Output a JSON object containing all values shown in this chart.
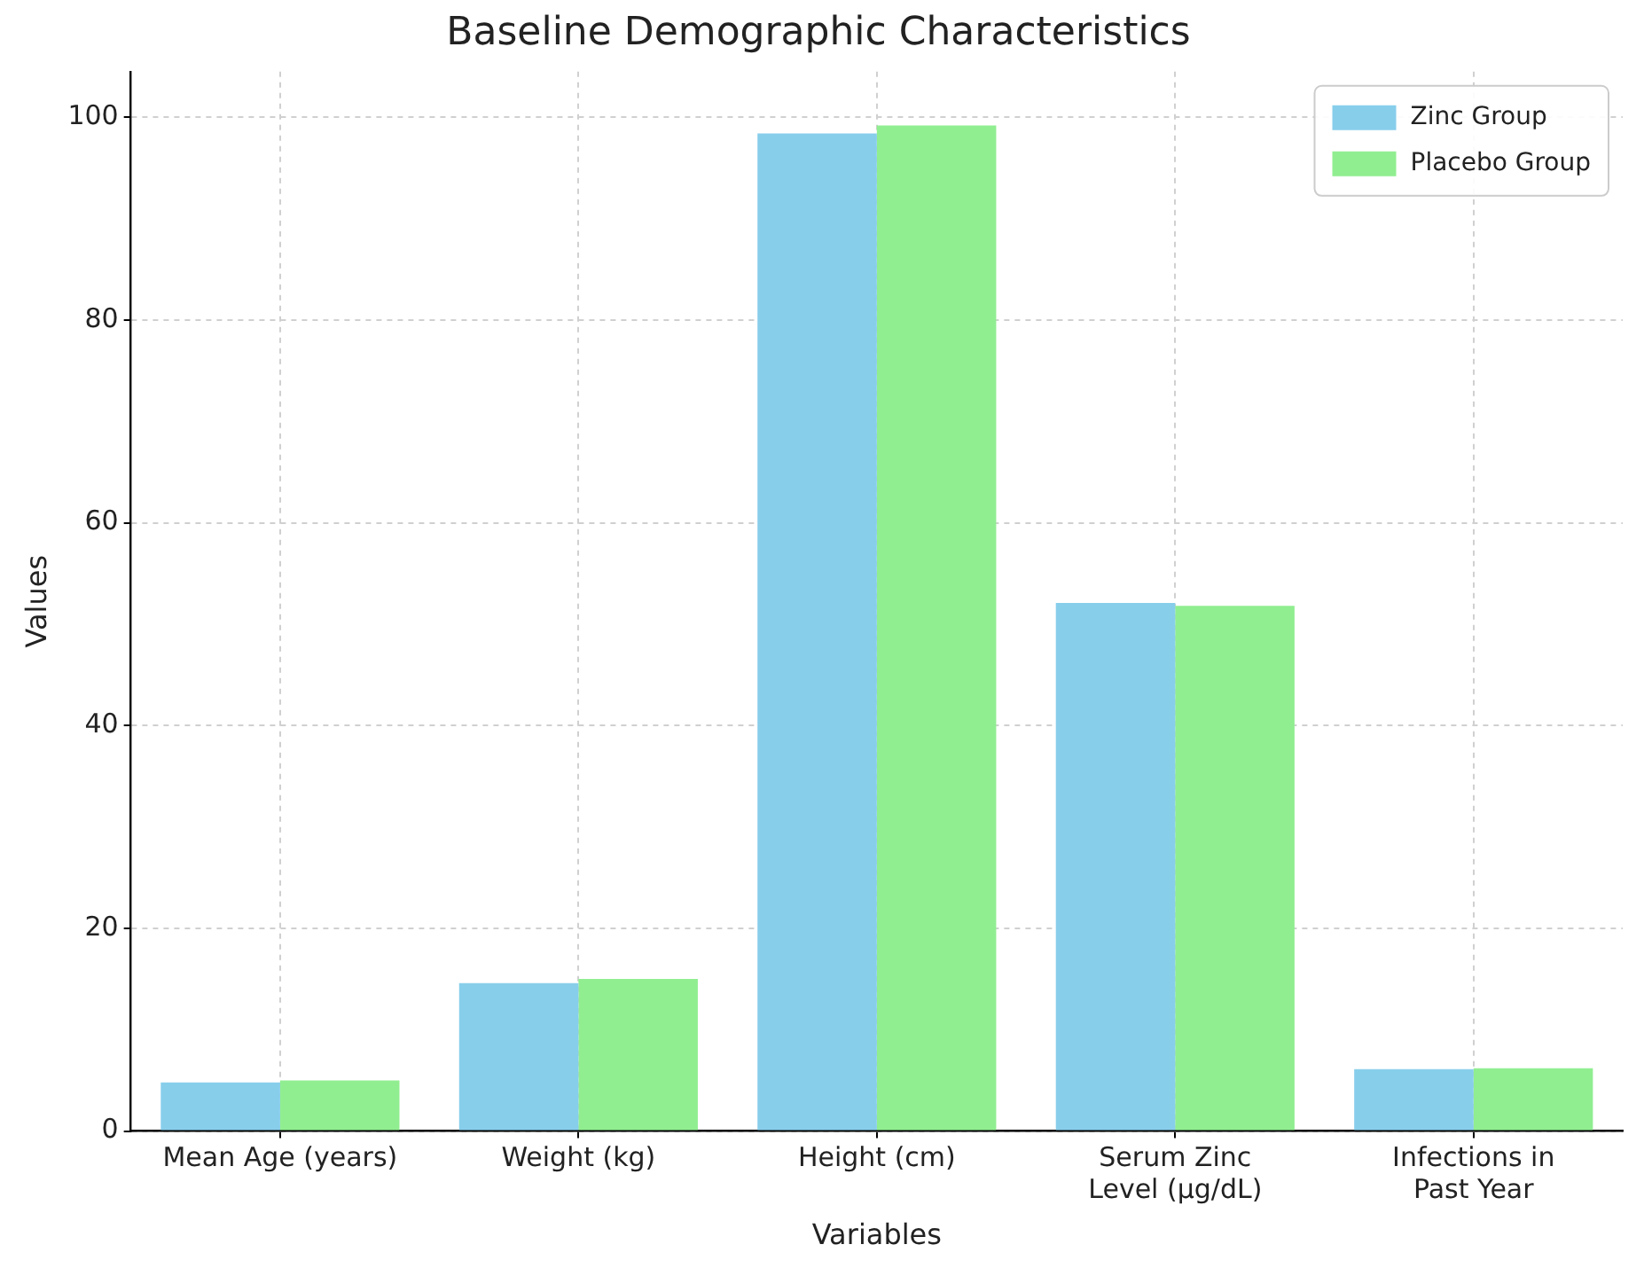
{
  "chart_data": {
    "type": "bar",
    "title": "Baseline Demographic Characteristics",
    "xlabel": "Variables",
    "ylabel": "Values",
    "categories": [
      "Mean Age (years)",
      "Weight (kg)",
      "Height (cm)",
      "Serum Zinc Level (µg/dL)",
      "Infections in Past Year"
    ],
    "series": [
      {
        "name": "Zinc Group",
        "color": "#87ceeb",
        "values": [
          4.8,
          14.6,
          98.4,
          52.1,
          6.1
        ]
      },
      {
        "name": "Placebo Group",
        "color": "#90ee90",
        "values": [
          5.0,
          15.0,
          99.2,
          51.8,
          6.2
        ]
      }
    ],
    "ylim": [
      0,
      104.5
    ],
    "yticks": [
      0,
      20,
      40,
      60,
      80,
      100
    ],
    "grid": true,
    "legend": "top right"
  }
}
